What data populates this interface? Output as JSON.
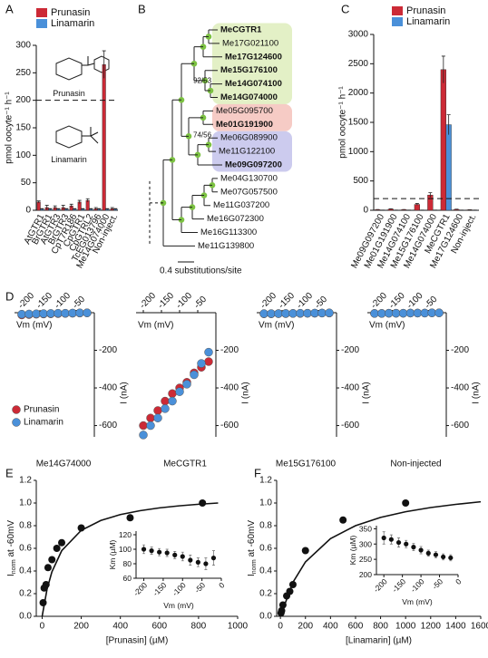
{
  "chart_data": [
    {
      "type": "bar",
      "panel": "A",
      "ylabel": "pmol  oocyte⁻¹ h⁻¹",
      "categories": [
        "AtGTR1",
        "BrGTR1",
        "AtGTR3",
        "BrGTR3",
        "CpT7R186",
        "CpGTR1",
        "CpGTRL2",
        "TcEG013796",
        "Me14G074000",
        "Non-inject."
      ],
      "series": [
        {
          "name": "Prunasin",
          "color": "#cc2a36",
          "values": [
            15,
            5,
            5,
            5,
            8,
            15,
            18,
            3,
            265,
            3
          ],
          "errors": [
            2,
            4,
            3,
            4,
            3,
            3,
            3,
            2,
            25,
            2
          ]
        },
        {
          "name": "Linamarin",
          "color": "#4a90d9",
          "values": [
            2,
            2,
            2,
            2,
            2,
            2,
            2,
            2,
            2,
            2
          ],
          "errors": [
            1,
            1,
            1,
            1,
            1,
            1,
            1,
            1,
            1,
            1
          ]
        }
      ],
      "structure_labels": [
        "Prunasin",
        "Linamarin"
      ],
      "reference_line": 200,
      "ylim": [
        0,
        300
      ],
      "yticks": [
        0,
        50,
        100,
        150,
        200,
        250,
        300
      ]
    },
    {
      "type": "bar",
      "panel": "C",
      "ylabel": "pmol  oocyte⁻¹ h⁻¹",
      "categories": [
        "Me09G097200",
        "Me01G191900",
        "Me14G074100",
        "Me15G176100",
        "Me14G074000",
        "MeCGTR1",
        "Me17G124600",
        "Non-inject."
      ],
      "series": [
        {
          "name": "Prunasin",
          "color": "#cc2a36",
          "values": [
            10,
            20,
            10,
            100,
            260,
            2400,
            15,
            8
          ],
          "errors": [
            3,
            5,
            3,
            15,
            40,
            230,
            3,
            2
          ]
        },
        {
          "name": "Linamarin",
          "color": "#4a90d9",
          "values": [
            2,
            2,
            2,
            2,
            2,
            1460,
            2,
            2
          ],
          "errors": [
            1,
            1,
            1,
            1,
            1,
            170,
            1,
            1
          ]
        }
      ],
      "reference_line": 200,
      "ylim": [
        0,
        3000
      ],
      "yticks": [
        0,
        500,
        1000,
        1500,
        2000,
        2500,
        3000
      ]
    },
    {
      "type": "scatter",
      "panel": "D",
      "title": "Me14G74000",
      "xlabel": "Vm (mV)",
      "ylabel": "I (nA)",
      "x": [
        -200,
        -180,
        -160,
        -140,
        -120,
        -100,
        -80,
        -60,
        -40,
        -20
      ],
      "series": [
        {
          "name": "Prunasin",
          "color": "#cc2a36",
          "values": [
            -12,
            -10,
            -8,
            -7,
            -6,
            -5,
            -4,
            -3,
            -2,
            -1
          ]
        },
        {
          "name": "Linamarin",
          "color": "#4a90d9",
          "values": [
            -8,
            -7,
            -6,
            -5,
            -4,
            -3,
            -3,
            -2,
            -1,
            -1
          ]
        }
      ],
      "xlim": [
        -220,
        0
      ],
      "xticks": [
        -200,
        -150,
        -100,
        -50
      ],
      "ylim": [
        -660,
        0
      ],
      "yticks": [
        -200,
        -400,
        -600
      ]
    },
    {
      "type": "scatter",
      "title": "MeCGTR1",
      "xlabel": "Vm (mV)",
      "ylabel": "I (nA)",
      "x": [
        -200,
        -180,
        -160,
        -140,
        -120,
        -100,
        -80,
        -60,
        -40,
        -20
      ],
      "series": [
        {
          "color": "#cc2a36",
          "values": [
            -600,
            -560,
            -520,
            -470,
            -430,
            -400,
            -370,
            -320,
            -290,
            -260
          ]
        },
        {
          "color": "#4a90d9",
          "values": [
            -650,
            -600,
            -560,
            -510,
            -470,
            -420,
            -380,
            -330,
            -270,
            -210
          ]
        }
      ],
      "xlim": [
        -220,
        0
      ],
      "xticks": [
        -200,
        -150,
        -100,
        -50
      ],
      "ylim": [
        -660,
        0
      ],
      "yticks": [
        -200,
        -400,
        -600
      ]
    },
    {
      "type": "scatter",
      "title": "Me15G176100",
      "xlabel": "Vm (mV)",
      "ylabel": "I (nA)",
      "x": [
        -200,
        -180,
        -160,
        -140,
        -120,
        -100,
        -80,
        -60,
        -40,
        -20
      ],
      "series": [
        {
          "color": "#cc2a36",
          "values": [
            -6,
            -6,
            -5,
            -5,
            -4,
            -4,
            -3,
            -3,
            -2,
            -2
          ]
        },
        {
          "color": "#4a90d9",
          "values": [
            -5,
            -5,
            -5,
            -4,
            -4,
            -3,
            -3,
            -2,
            -2,
            -1
          ]
        }
      ],
      "xlim": [
        -220,
        0
      ],
      "xticks": [
        -200,
        -150,
        -100,
        -50
      ],
      "ylim": [
        -660,
        0
      ],
      "yticks": [
        -200,
        -400,
        -600
      ]
    },
    {
      "type": "scatter",
      "title": "Non-injected",
      "xlabel": "Vm (mV)",
      "ylabel": "I (nA)",
      "x": [
        -200,
        -180,
        -160,
        -140,
        -120,
        -100,
        -80,
        -60,
        -40,
        -20
      ],
      "series": [
        {
          "color": "#cc2a36",
          "values": [
            -4,
            -4,
            -3,
            -3,
            -3,
            -2,
            -2,
            -2,
            -1,
            -1
          ]
        },
        {
          "color": "#4a90d9",
          "values": [
            -4,
            -4,
            -3,
            -3,
            -3,
            -2,
            -2,
            -2,
            -1,
            -1
          ]
        }
      ],
      "xlim": [
        -220,
        0
      ],
      "xticks": [
        -200,
        -150,
        -100,
        -50
      ],
      "ylim": [
        -660,
        0
      ],
      "yticks": [
        -200,
        -400,
        -600
      ]
    },
    {
      "type": "scatter",
      "panel": "E",
      "xlabel": "[Prunasin] (µM)",
      "ylabel": [
        "I",
        "norm",
        " at -60mV"
      ],
      "x": [
        5,
        10,
        20,
        30,
        50,
        75,
        100,
        200,
        450,
        820
      ],
      "values": [
        0.12,
        0.25,
        0.28,
        0.43,
        0.5,
        0.6,
        0.65,
        0.78,
        0.87,
        1.0
      ],
      "fit": {
        "x": [
          0,
          25,
          50,
          100,
          200,
          300,
          400,
          500,
          600,
          700,
          800,
          900
        ],
        "values": [
          0,
          0.239,
          0.393,
          0.579,
          0.759,
          0.846,
          0.898,
          0.932,
          0.957,
          0.975,
          0.989,
          1.0
        ]
      },
      "xlim": [
        -30,
        1000
      ],
      "xticks": [
        0,
        200,
        400,
        600,
        800,
        1000
      ],
      "ylim": [
        0,
        1.2
      ],
      "yticks": [
        {
          "value": 0,
          "label": "0.0"
        },
        0.2,
        0.4,
        0.6,
        0.8,
        {
          "value": 1,
          "label": "1.0"
        },
        1.2
      ],
      "inset": {
        "xlabel": "Vm (mV)",
        "ylabel": "Km (µM)",
        "x": [
          -200,
          -180,
          -160,
          -140,
          -120,
          -100,
          -80,
          -60,
          -40,
          -20
        ],
        "values": [
          100,
          98,
          96,
          95,
          92,
          90,
          85,
          82,
          80,
          88
        ],
        "errors": [
          6,
          5,
          5,
          5,
          5,
          6,
          7,
          6,
          8,
          10
        ],
        "xlim": [
          -220,
          0
        ],
        "xticks": [
          -200,
          -150,
          -100,
          -50,
          0
        ],
        "ylim": [
          60,
          125
        ],
        "yticks": [
          60,
          80,
          100,
          120
        ]
      }
    },
    {
      "type": "scatter",
      "panel": "F",
      "xlabel": "[Linamarin] (µM)",
      "ylabel": [
        "I",
        "norm",
        " at -60mV"
      ],
      "x": [
        5,
        10,
        20,
        50,
        75,
        100,
        200,
        500,
        1000
      ],
      "values": [
        0.03,
        0.05,
        0.1,
        0.18,
        0.22,
        0.28,
        0.58,
        0.85,
        1.0
      ],
      "fit": {
        "x": [
          0,
          100,
          200,
          400,
          600,
          800,
          1000,
          1200,
          1400,
          1600
        ],
        "values": [
          0,
          0.3,
          0.48,
          0.686,
          0.8,
          0.873,
          0.923,
          0.96,
          0.988,
          1.011
        ]
      },
      "xlim": [
        -30,
        1600
      ],
      "xticks": [
        0,
        200,
        400,
        600,
        800,
        1000,
        1200,
        1400,
        1600
      ],
      "ylim": [
        0,
        1.2
      ],
      "yticks": [
        {
          "value": 0,
          "label": "0.0"
        },
        0.2,
        0.4,
        0.6,
        0.8,
        {
          "value": 1,
          "label": "1.0"
        },
        1.2
      ],
      "inset": {
        "xlabel": "Vm (mV)",
        "ylabel": "Km (µM)",
        "x": [
          -200,
          -180,
          -160,
          -140,
          -120,
          -100,
          -80,
          -60,
          -40,
          -20
        ],
        "values": [
          320,
          315,
          305,
          300,
          290,
          280,
          270,
          265,
          258,
          255
        ],
        "errors": [
          20,
          15,
          15,
          12,
          12,
          12,
          10,
          10,
          10,
          10
        ],
        "xlim": [
          -220,
          0
        ],
        "xticks": [
          -200,
          -150,
          -100,
          -50,
          0
        ],
        "ylim": [
          200,
          360
        ],
        "yticks": [
          200,
          250,
          300,
          350
        ]
      }
    }
  ],
  "tree": {
    "panel": "B",
    "leaves": [
      {
        "label": "MeCGTR1",
        "bold": true,
        "highlight": "#e3f0c6"
      },
      {
        "label": "Me17G021100",
        "bold": false,
        "highlight": "#e3f0c6"
      },
      {
        "label": "Me17G124600",
        "bold": true,
        "highlight": "#e3f0c6"
      },
      {
        "label": "Me15G176100",
        "bold": true,
        "highlight": "#e3f0c6"
      },
      {
        "label": "Me14G074100",
        "bold": true,
        "highlight": "#e3f0c6"
      },
      {
        "label": "Me14G074000",
        "bold": true,
        "highlight": "#e3f0c6"
      },
      {
        "label": "Me05G095700",
        "bold": false,
        "highlight": "#f6cbc5"
      },
      {
        "label": "Me01G191900",
        "bold": true,
        "highlight": "#f6cbc5"
      },
      {
        "label": "Me06G089900",
        "bold": false,
        "highlight": "#cccbee"
      },
      {
        "label": "Me11G122100",
        "bold": false,
        "highlight": "#cccbee"
      },
      {
        "label": "Me09G097200",
        "bold": true,
        "highlight": "#cccbee"
      },
      {
        "label": "Me04G130700",
        "bold": false
      },
      {
        "label": "Me07G057500",
        "bold": false
      },
      {
        "label": "Me11G037200",
        "bold": false
      },
      {
        "label": "Me16G072300",
        "bold": false
      },
      {
        "label": "Me16G113300",
        "bold": false
      },
      {
        "label": "Me11G139800",
        "bold": false
      }
    ],
    "bootstrap": [
      "92/53",
      "74/56"
    ],
    "scale_label": "0.4 substitutions/site"
  }
}
